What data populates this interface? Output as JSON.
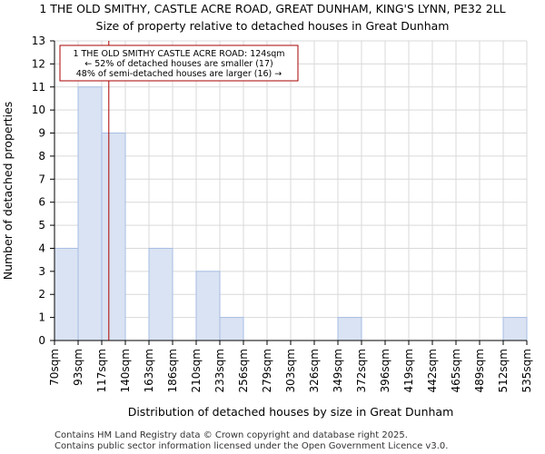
{
  "chart_data": {
    "type": "bar",
    "title": "1 THE OLD SMITHY, CASTLE ACRE ROAD, GREAT DUNHAM, KING'S LYNN, PE32 2LL",
    "subtitle": "Size of property relative to detached houses in Great Dunham",
    "xlabel": "Distribution of detached houses by size in Great Dunham",
    "ylabel": "Number of detached properties",
    "bin_edges": [
      "70sqm",
      "93sqm",
      "117sqm",
      "140sqm",
      "163sqm",
      "186sqm",
      "210sqm",
      "233sqm",
      "256sqm",
      "279sqm",
      "303sqm",
      "326sqm",
      "349sqm",
      "372sqm",
      "396sqm",
      "419sqm",
      "442sqm",
      "465sqm",
      "489sqm",
      "512sqm",
      "535sqm"
    ],
    "values": [
      4,
      11,
      9,
      0,
      4,
      0,
      3,
      1,
      0,
      0,
      0,
      0,
      1,
      0,
      0,
      0,
      0,
      0,
      0,
      1
    ],
    "ylim": [
      0,
      13
    ],
    "yticks": [
      0,
      1,
      2,
      3,
      4,
      5,
      6,
      7,
      8,
      9,
      10,
      11,
      12,
      13
    ],
    "grid": true,
    "property_marker": {
      "value_sqm": 124,
      "bin_position": 2.3
    },
    "annotation": {
      "lines": [
        "1 THE OLD SMITHY CASTLE ACRE ROAD: 124sqm",
        "← 52% of detached houses are smaller (17)",
        "48% of semi-detached houses are larger (16) →"
      ]
    },
    "colors": {
      "bar_fill": "#dae3f3",
      "bar_stroke": "#a6bde3",
      "grid": "#d9d9d9",
      "marker_line": "#aa0000",
      "annotation_border": "#aa0000"
    }
  },
  "footer": {
    "line1": "Contains HM Land Registry data © Crown copyright and database right 2025.",
    "line2": "Contains public sector information licensed under the Open Government Licence v3.0."
  }
}
